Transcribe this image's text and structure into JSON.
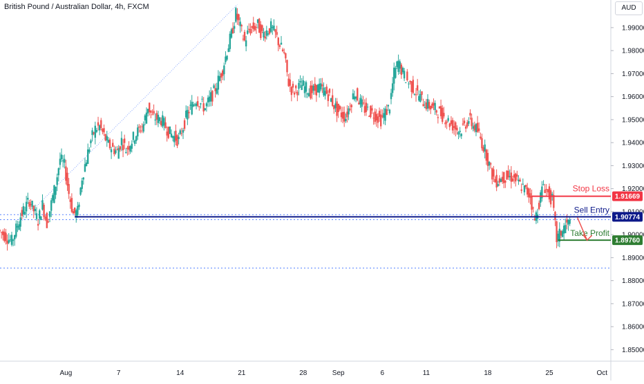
{
  "chart_data": {
    "type": "candlestick",
    "title": "British Pound / Australian Dollar, 4h, FXCM",
    "currency": "AUD",
    "ylim": [
      1.845,
      2.002
    ],
    "y_ticks": [
      "1.99000",
      "1.98000",
      "1.97000",
      "1.96000",
      "1.95000",
      "1.94000",
      "1.93000",
      "1.92000",
      "1.91000",
      "1.90000",
      "1.89000",
      "1.88000",
      "1.87000",
      "1.86000",
      "1.85000"
    ],
    "y_tick_values": [
      1.99,
      1.98,
      1.97,
      1.96,
      1.95,
      1.94,
      1.93,
      1.92,
      1.91,
      1.9,
      1.89,
      1.88,
      1.87,
      1.86,
      1.85
    ],
    "x_ticks": [
      "Aug",
      "7",
      "14",
      "21",
      "28",
      "Sep",
      "6",
      "11",
      "18",
      "25",
      "Oct"
    ],
    "x_tick_days": [
      0,
      6,
      13,
      20,
      27,
      31,
      36,
      41,
      48,
      55,
      61
    ],
    "x_range_days": [
      -7.5,
      62
    ],
    "levels": {
      "stop_loss": {
        "label": "Stop Loss",
        "value": 1.91669,
        "value_text": "1.91669",
        "color": "#f23645"
      },
      "sell_entry": {
        "label": "Sell Entry",
        "value": 1.90774,
        "value_text": "1.90774",
        "color": "#0d1a8a"
      },
      "take_profit": {
        "label": "Take Profit",
        "value": 1.8976,
        "value_text": "1.89760",
        "color": "#2e7d32"
      }
    },
    "dotted_levels": [
      1.9087,
      1.9065,
      1.8855
    ],
    "colors": {
      "up": "#26a69a",
      "down": "#ef5350",
      "trend": "#2962ff"
    },
    "series": [
      {
        "d": -7.5,
        "v": 1.902
      },
      {
        "d": -6.0,
        "v": 1.897
      },
      {
        "d": -5.0,
        "v": 1.908
      },
      {
        "d": -4.0,
        "v": 1.915
      },
      {
        "d": -3.0,
        "v": 1.906
      },
      {
        "d": -2.5,
        "v": 1.913
      },
      {
        "d": -2.0,
        "v": 1.905
      },
      {
        "d": -1.0,
        "v": 1.922
      },
      {
        "d": -0.5,
        "v": 1.933
      },
      {
        "d": 0.0,
        "v": 1.93
      },
      {
        "d": 0.5,
        "v": 1.918
      },
      {
        "d": 1.0,
        "v": 1.909
      },
      {
        "d": 1.5,
        "v": 1.91
      },
      {
        "d": 2.0,
        "v": 1.925
      },
      {
        "d": 2.5,
        "v": 1.933
      },
      {
        "d": 3.0,
        "v": 1.941
      },
      {
        "d": 3.5,
        "v": 1.946
      },
      {
        "d": 4.0,
        "v": 1.947
      },
      {
        "d": 4.5,
        "v": 1.943
      },
      {
        "d": 5.0,
        "v": 1.939
      },
      {
        "d": 6.0,
        "v": 1.936
      },
      {
        "d": 6.5,
        "v": 1.941
      },
      {
        "d": 7.0,
        "v": 1.937
      },
      {
        "d": 8.0,
        "v": 1.943
      },
      {
        "d": 9.0,
        "v": 1.948
      },
      {
        "d": 9.5,
        "v": 1.956
      },
      {
        "d": 10.0,
        "v": 1.951
      },
      {
        "d": 11.0,
        "v": 1.95
      },
      {
        "d": 12.0,
        "v": 1.944
      },
      {
        "d": 13.0,
        "v": 1.941
      },
      {
        "d": 13.5,
        "v": 1.947
      },
      {
        "d": 14.0,
        "v": 1.953
      },
      {
        "d": 15.0,
        "v": 1.959
      },
      {
        "d": 15.5,
        "v": 1.957
      },
      {
        "d": 16.0,
        "v": 1.955
      },
      {
        "d": 17.0,
        "v": 1.962
      },
      {
        "d": 18.0,
        "v": 1.972
      },
      {
        "d": 18.5,
        "v": 1.98
      },
      {
        "d": 19.0,
        "v": 1.987
      },
      {
        "d": 19.5,
        "v": 1.996
      },
      {
        "d": 20.0,
        "v": 1.99
      },
      {
        "d": 20.5,
        "v": 1.984
      },
      {
        "d": 21.0,
        "v": 1.989
      },
      {
        "d": 22.0,
        "v": 1.991
      },
      {
        "d": 22.5,
        "v": 1.987
      },
      {
        "d": 23.5,
        "v": 1.99
      },
      {
        "d": 24.0,
        "v": 1.987
      },
      {
        "d": 25.0,
        "v": 1.978
      },
      {
        "d": 25.5,
        "v": 1.966
      },
      {
        "d": 26.0,
        "v": 1.962
      },
      {
        "d": 27.0,
        "v": 1.965
      },
      {
        "d": 28.0,
        "v": 1.962
      },
      {
        "d": 29.0,
        "v": 1.964
      },
      {
        "d": 30.0,
        "v": 1.961
      },
      {
        "d": 31.0,
        "v": 1.954
      },
      {
        "d": 32.0,
        "v": 1.951
      },
      {
        "d": 33.0,
        "v": 1.962
      },
      {
        "d": 34.0,
        "v": 1.955
      },
      {
        "d": 35.0,
        "v": 1.953
      },
      {
        "d": 36.0,
        "v": 1.95
      },
      {
        "d": 37.0,
        "v": 1.956
      },
      {
        "d": 37.5,
        "v": 1.97
      },
      {
        "d": 38.0,
        "v": 1.975
      },
      {
        "d": 38.5,
        "v": 1.97
      },
      {
        "d": 39.0,
        "v": 1.967
      },
      {
        "d": 40.0,
        "v": 1.962
      },
      {
        "d": 41.0,
        "v": 1.957
      },
      {
        "d": 42.0,
        "v": 1.955
      },
      {
        "d": 43.0,
        "v": 1.952
      },
      {
        "d": 44.0,
        "v": 1.948
      },
      {
        "d": 45.0,
        "v": 1.945
      },
      {
        "d": 46.0,
        "v": 1.95
      },
      {
        "d": 47.0,
        "v": 1.945
      },
      {
        "d": 48.0,
        "v": 1.935
      },
      {
        "d": 48.5,
        "v": 1.928
      },
      {
        "d": 49.0,
        "v": 1.923
      },
      {
        "d": 50.0,
        "v": 1.925
      },
      {
        "d": 51.0,
        "v": 1.925
      },
      {
        "d": 52.0,
        "v": 1.921
      },
      {
        "d": 53.0,
        "v": 1.917
      },
      {
        "d": 53.5,
        "v": 1.906
      },
      {
        "d": 54.0,
        "v": 1.914
      },
      {
        "d": 54.5,
        "v": 1.922
      },
      {
        "d": 55.0,
        "v": 1.918
      },
      {
        "d": 55.5,
        "v": 1.915
      },
      {
        "d": 56.0,
        "v": 1.898
      },
      {
        "d": 57.0,
        "v": 1.904
      },
      {
        "d": 57.5,
        "v": 1.905
      }
    ]
  }
}
